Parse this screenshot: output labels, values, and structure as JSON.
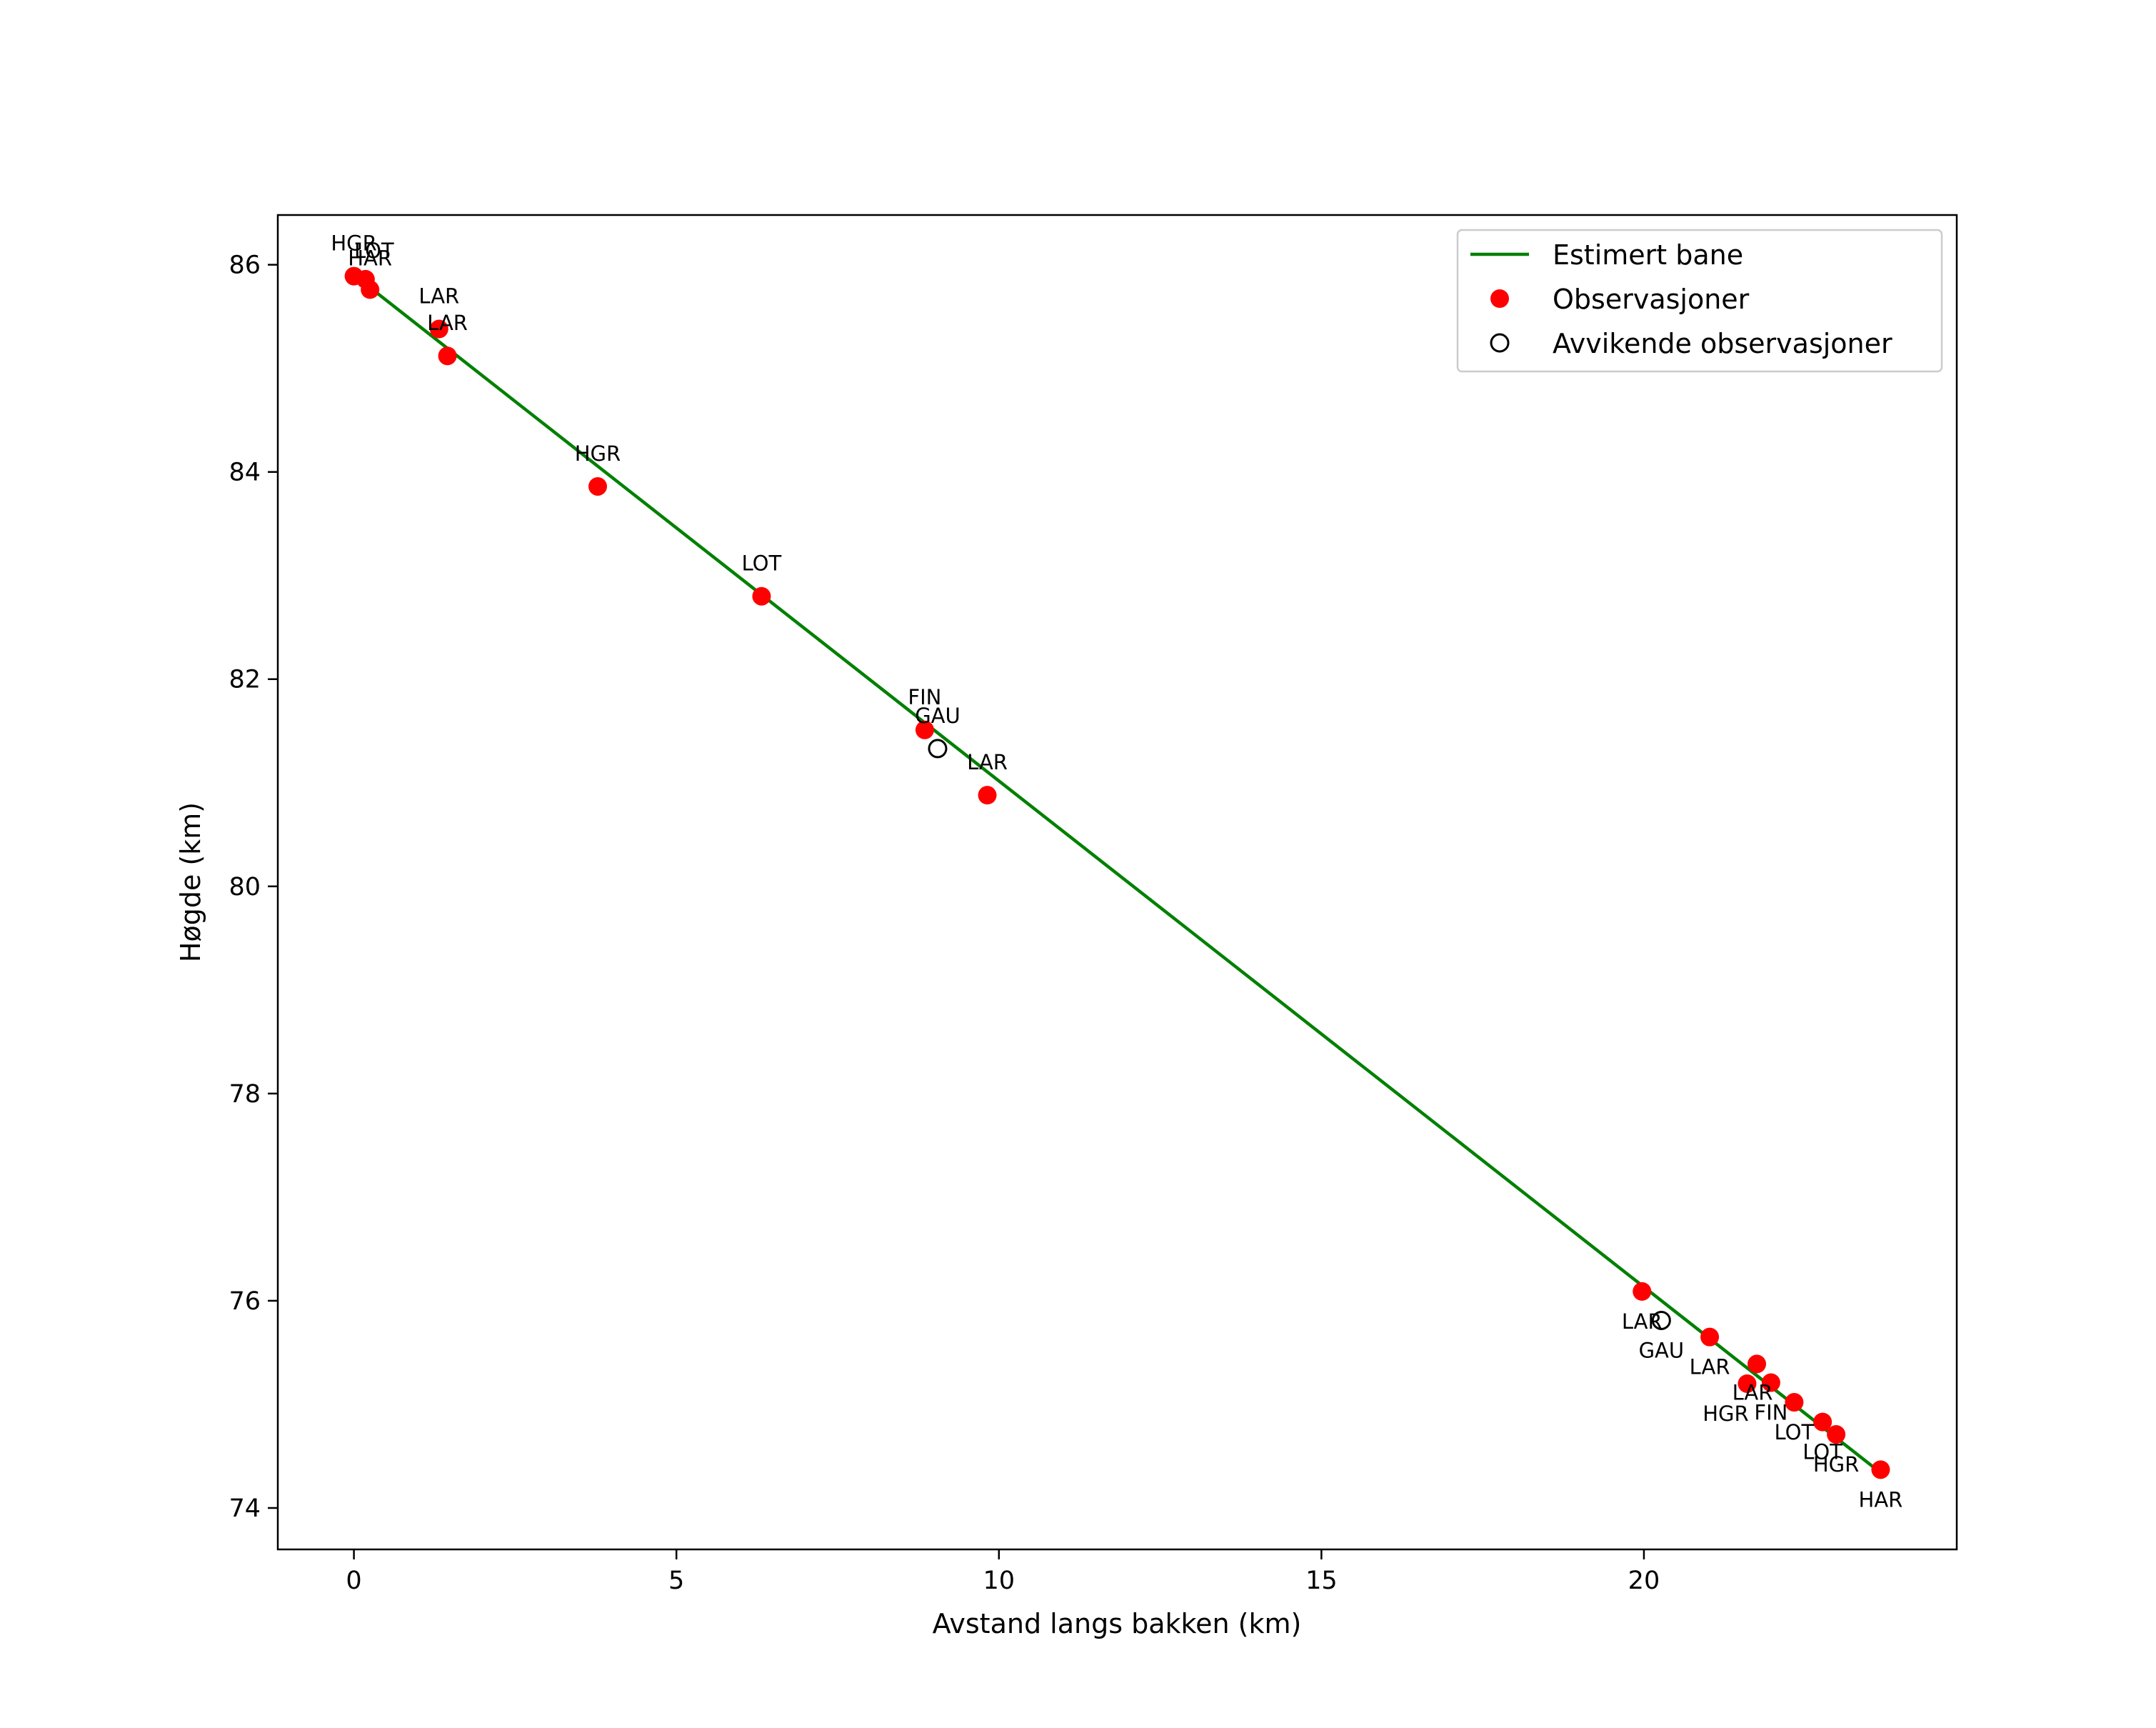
{
  "chart_data": {
    "type": "scatter",
    "title": "",
    "xlabel": "Avstand langs bakken (km)",
    "ylabel": "Høgde (km)",
    "xlim": [
      -1.18,
      24.85
    ],
    "ylim": [
      73.6,
      86.48
    ],
    "xticks": [
      0,
      5,
      10,
      15,
      20
    ],
    "yticks": [
      74,
      76,
      78,
      80,
      82,
      84,
      86
    ],
    "grid": false,
    "legend_position": "top-right",
    "line_color": "#008000",
    "observation_color": "#ff0000",
    "outlier_color": "#000000",
    "series": [
      {
        "name": "Estimert bane",
        "type": "line",
        "points": [
          [
            0.25,
            85.78
          ],
          [
            23.65,
            74.35
          ]
        ]
      },
      {
        "name": "Observasjoner",
        "type": "scatter",
        "points": [
          {
            "x": 0.0,
            "y": 85.89,
            "label": "HGR"
          },
          {
            "x": 0.18,
            "y": 85.86,
            "label": "LOT"
          },
          {
            "x": 0.25,
            "y": 85.76,
            "label": "HAR"
          },
          {
            "x": 1.32,
            "y": 85.38,
            "label": "LAR"
          },
          {
            "x": 1.45,
            "y": 85.12,
            "label": "LAR"
          },
          {
            "x": 3.78,
            "y": 83.86,
            "label": "HGR"
          },
          {
            "x": 6.32,
            "y": 82.8,
            "label": "LOT"
          },
          {
            "x": 8.85,
            "y": 81.51,
            "label": "FIN"
          },
          {
            "x": 9.82,
            "y": 80.88,
            "label": "LAR"
          },
          {
            "x": 19.97,
            "y": 76.09,
            "label": "LAR"
          },
          {
            "x": 21.02,
            "y": 75.65,
            "label": "LAR"
          },
          {
            "x": 21.75,
            "y": 75.39,
            "label": "LAR"
          },
          {
            "x": 21.6,
            "y": 75.2,
            "label": "HGR"
          },
          {
            "x": 21.97,
            "y": 75.21,
            "label": "FIN"
          },
          {
            "x": 22.33,
            "y": 75.02,
            "label": "LOT"
          },
          {
            "x": 22.77,
            "y": 74.83,
            "label": "LOT"
          },
          {
            "x": 22.98,
            "y": 74.71,
            "label": "HGR"
          },
          {
            "x": 23.67,
            "y": 74.37,
            "label": "HAR"
          }
        ]
      },
      {
        "name": "Avvikende observasjoner",
        "type": "scatter",
        "points": [
          {
            "x": 9.05,
            "y": 81.33,
            "label": "GAU"
          },
          {
            "x": 20.27,
            "y": 75.81,
            "label": "GAU"
          }
        ]
      }
    ]
  }
}
